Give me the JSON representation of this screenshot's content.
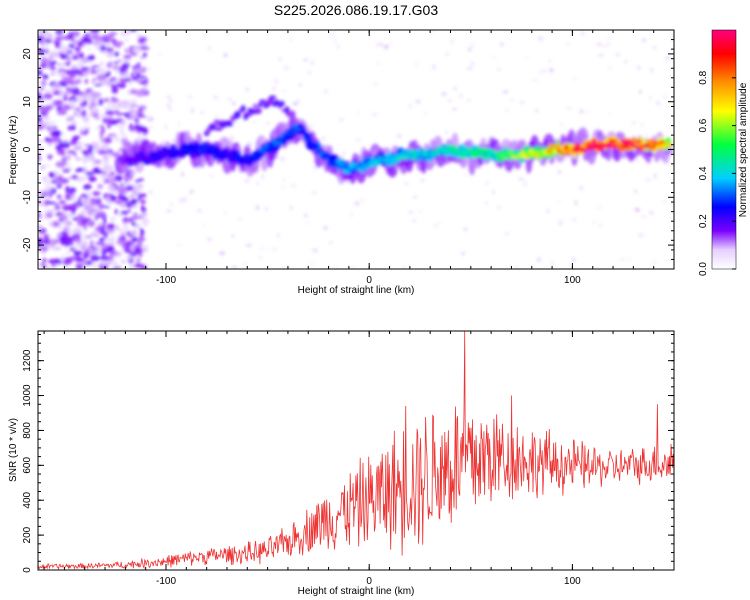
{
  "title": "S225.2026.086.19.17.G03",
  "chart_data": [
    {
      "type": "heatmap",
      "panel": "spectrogram",
      "xlabel": "Height of straight line (km)",
      "ylabel": "Frequency (Hz)",
      "xlim": [
        -163,
        150
      ],
      "ylim": [
        -25,
        25
      ],
      "x_ticks": [
        -100,
        0,
        100
      ],
      "x_tick_labels": [
        "-100",
        "0",
        "100"
      ],
      "y_ticks": [
        -20,
        -10,
        0,
        10,
        20
      ],
      "y_tick_labels": [
        "-20",
        "-10",
        "0",
        "10",
        "20"
      ],
      "ridge": {
        "description_units": "height km -> frequency Hz",
        "x": [
          -123,
          -110,
          -100,
          -90,
          -80,
          -70,
          -60,
          -50,
          -40,
          -35,
          -30,
          -20,
          -10,
          0,
          10,
          20,
          30,
          40,
          50,
          60,
          70,
          80,
          90,
          100,
          110,
          120,
          130,
          140,
          148
        ],
        "y": [
          -2,
          -2,
          -1,
          0,
          0,
          -1,
          -2,
          0,
          3,
          5,
          2,
          -2,
          -4,
          -3,
          -2,
          -1,
          -1,
          0,
          -1,
          -1,
          -1,
          -1,
          0,
          0,
          1,
          1,
          1,
          1,
          1
        ],
        "amplitude": [
          0.15,
          0.2,
          0.2,
          0.25,
          0.25,
          0.22,
          0.25,
          0.3,
          0.3,
          0.3,
          0.28,
          0.3,
          0.35,
          0.35,
          0.38,
          0.4,
          0.4,
          0.42,
          0.45,
          0.45,
          0.55,
          0.6,
          0.7,
          0.85,
          0.95,
          0.95,
          0.9,
          0.85,
          0.7
        ]
      },
      "upper_branch": {
        "x": [
          -80,
          -70,
          -60,
          -50,
          -45,
          -40,
          -35
        ],
        "y": [
          4,
          6,
          8,
          10,
          10,
          8,
          5
        ]
      },
      "noise_region": {
        "x_range": [
          -163,
          -110
        ],
        "y_range": [
          -25,
          25
        ]
      }
    },
    {
      "type": "bar",
      "panel": "colorbar",
      "ylabel": "Normalized spectral amplitude",
      "ylim": [
        0,
        1
      ],
      "ticks": [
        0,
        0.2,
        0.4,
        0.6,
        0.8
      ],
      "tick_labels": [
        "0.0",
        "0.2",
        "0.4",
        "0.6",
        "0.8"
      ],
      "colors": [
        "#ffffff",
        "#7a00ff",
        "#0000ff",
        "#00d0ff",
        "#00ff00",
        "#ffff00",
        "#ff8000",
        "#ff0000",
        "#ff0080"
      ]
    },
    {
      "type": "line",
      "panel": "snr",
      "xlabel": "Height of straight line (km)",
      "ylabel": "SNR (10 * v/v)",
      "xlim": [
        -163,
        150
      ],
      "ylim": [
        0,
        1370
      ],
      "x_ticks": [
        -100,
        0,
        100
      ],
      "x_tick_labels": [
        "-100",
        "0",
        "100"
      ],
      "y_ticks": [
        0,
        200,
        400,
        600,
        800,
        1000,
        1200
      ],
      "y_tick_labels": [
        "0",
        "200",
        "400",
        "600",
        "800",
        "1000",
        "1200"
      ],
      "color": "#ee3333",
      "envelope": {
        "x": [
          -163,
          -140,
          -120,
          -100,
          -80,
          -60,
          -50,
          -40,
          -30,
          -20,
          -10,
          0,
          10,
          20,
          30,
          40,
          50,
          60,
          70,
          80,
          90,
          100,
          110,
          120,
          130,
          140,
          150
        ],
        "mean": [
          20,
          22,
          30,
          50,
          80,
          95,
          110,
          160,
          230,
          300,
          350,
          400,
          450,
          500,
          560,
          600,
          620,
          650,
          650,
          620,
          610,
          600,
          590,
          590,
          600,
          610,
          620
        ],
        "spread": [
          15,
          15,
          20,
          35,
          45,
          60,
          70,
          90,
          130,
          180,
          220,
          260,
          320,
          380,
          400,
          400,
          380,
          300,
          250,
          200,
          180,
          150,
          120,
          100,
          100,
          110,
          150
        ]
      },
      "peaks": [
        {
          "x": 47,
          "y": 1370
        },
        {
          "x": 18,
          "y": 940
        },
        {
          "x": 70,
          "y": 1000
        },
        {
          "x": 142,
          "y": 950
        }
      ]
    }
  ]
}
